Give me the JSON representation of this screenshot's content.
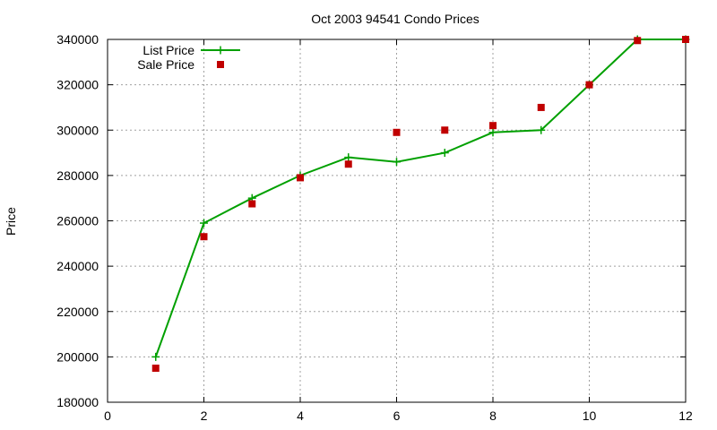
{
  "chart_data": {
    "type": "line",
    "title": "Oct 2003 94541 Condo Prices",
    "xlabel": "",
    "ylabel": "Price",
    "xlim": [
      0,
      12
    ],
    "ylim": [
      180000,
      340000
    ],
    "xticks": [
      0,
      2,
      4,
      6,
      8,
      10,
      12
    ],
    "yticks": [
      180000,
      200000,
      220000,
      240000,
      260000,
      280000,
      300000,
      320000,
      340000
    ],
    "grid": true,
    "legend_position": "top-left",
    "series": [
      {
        "name": "List Price",
        "style": "line+plus-markers",
        "color": "#00a000",
        "x": [
          1,
          2,
          3,
          4,
          5,
          6,
          7,
          8,
          9,
          10,
          11,
          12
        ],
        "y": [
          200000,
          259000,
          270000,
          280000,
          288000,
          286000,
          290000,
          299000,
          300000,
          320000,
          340000,
          340000
        ]
      },
      {
        "name": "Sale Price",
        "style": "square-markers",
        "color": "#c00000",
        "x": [
          1,
          2,
          3,
          4,
          5,
          6,
          7,
          8,
          9,
          10,
          11,
          12
        ],
        "y": [
          195000,
          253000,
          267500,
          279000,
          285000,
          299000,
          300000,
          302000,
          310000,
          320000,
          339500,
          340000
        ]
      }
    ]
  }
}
